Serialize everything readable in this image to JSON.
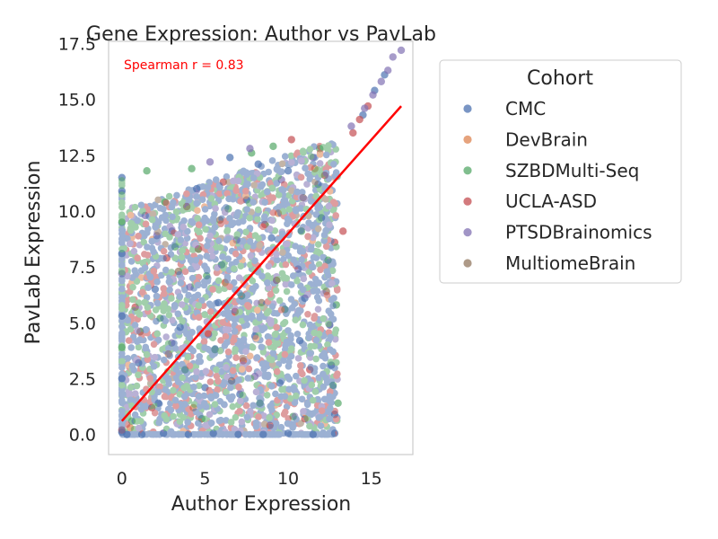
{
  "chart_data": {
    "type": "scatter",
    "title": "Gene Expression: Author vs PavLab",
    "xlabel": "Author Expression",
    "ylabel": "PavLab Expression",
    "xlim": [
      -0.8,
      17.5
    ],
    "ylim": [
      -0.9,
      17.6
    ],
    "xticks": [
      "0",
      "5",
      "10",
      "15"
    ],
    "xtick_values": [
      0,
      5,
      10,
      15
    ],
    "yticks": [
      "0.0",
      "2.5",
      "5.0",
      "7.5",
      "10.0",
      "12.5",
      "15.0",
      "17.5"
    ],
    "ytick_values": [
      0,
      2.5,
      5,
      7.5,
      10,
      12.5,
      15,
      17.5
    ],
    "grid": false,
    "annotation": "Spearman r = 0.83",
    "annotation_color": "#ff0000",
    "regression_line": {
      "x": [
        0,
        16.8
      ],
      "y": [
        0.6,
        14.7
      ],
      "color": "#ff0000"
    },
    "legend": {
      "title": "Cohort",
      "placement": "outside-right"
    },
    "series": [
      {
        "name": "CMC",
        "color": "#4c72b0",
        "points": [
          [
            0,
            0.1
          ],
          [
            0,
            2.5
          ],
          [
            0,
            5.3
          ],
          [
            0,
            8.1
          ],
          [
            0,
            10.9
          ],
          [
            0,
            11.5
          ],
          [
            0.3,
            0
          ],
          [
            1.2,
            0
          ],
          [
            2.5,
            0.05
          ],
          [
            4,
            0
          ],
          [
            5.5,
            0.05
          ],
          [
            7,
            0
          ],
          [
            8.5,
            0
          ],
          [
            10,
            0.05
          ],
          [
            11.5,
            0
          ],
          [
            12.8,
            0.05
          ],
          [
            1,
            3.2
          ],
          [
            2,
            6.5
          ],
          [
            3,
            9.1
          ],
          [
            4.5,
            11
          ],
          [
            5,
            2.1
          ],
          [
            6,
            7.6
          ],
          [
            7.5,
            10.5
          ],
          [
            8,
            4.4
          ],
          [
            9,
            8.8
          ],
          [
            10,
            11.8
          ],
          [
            11,
            6.1
          ],
          [
            12,
            9.7
          ],
          [
            12.6,
            3.1
          ],
          [
            12.8,
            0.9
          ],
          [
            6.5,
            12.4
          ],
          [
            8.2,
            12.1
          ],
          [
            3.5,
            4.8
          ],
          [
            9.5,
            2.3
          ],
          [
            11.8,
            11.2
          ],
          [
            14.5,
            14.3
          ],
          [
            15.2,
            15.4
          ],
          [
            15.8,
            16.1
          ],
          [
            2.2,
            1.4
          ],
          [
            5.8,
            5.9
          ],
          [
            7.1,
            1.8
          ],
          [
            10.7,
            4.2
          ]
        ]
      },
      {
        "name": "DevBrain",
        "color": "#dd8452",
        "points": [
          [
            0.5,
            0.3
          ],
          [
            2.8,
            3.6
          ],
          [
            6.2,
            6.8
          ],
          [
            9.4,
            9.9
          ],
          [
            11.6,
            11.9
          ],
          [
            4.3,
            1.2
          ]
        ]
      },
      {
        "name": "SZBDMulti-Seq",
        "color": "#55a868",
        "points": [
          [
            0,
            9.5
          ],
          [
            0,
            3.9
          ],
          [
            0.6,
            0.6
          ],
          [
            1.5,
            11.8
          ],
          [
            2.3,
            5.2
          ],
          [
            3.2,
            8.4
          ],
          [
            4.2,
            11.9
          ],
          [
            4.8,
            0.7
          ],
          [
            5.6,
            3.8
          ],
          [
            6.4,
            10.1
          ],
          [
            7.2,
            6.2
          ],
          [
            8.3,
            1.4
          ],
          [
            9.1,
            12.9
          ],
          [
            9.8,
            5.6
          ],
          [
            10.8,
            9.1
          ],
          [
            11.9,
            12.8
          ],
          [
            12.4,
            7.8
          ],
          [
            12.9,
            5.8
          ],
          [
            12.7,
            2.2
          ],
          [
            13,
            1.4
          ],
          [
            7.8,
            12.6
          ],
          [
            3.8,
            2.9
          ],
          [
            5.1,
            7.1
          ],
          [
            10.3,
            0.8
          ],
          [
            2.6,
            10.4
          ]
        ]
      },
      {
        "name": "UCLA-ASD",
        "color": "#c44e52",
        "points": [
          [
            0,
            0.2
          ],
          [
            0.8,
            5.7
          ],
          [
            1.8,
            1.2
          ],
          [
            2.7,
            7.9
          ],
          [
            3.9,
            10.2
          ],
          [
            5.2,
            4.5
          ],
          [
            6.1,
            11.3
          ],
          [
            7.3,
            3.3
          ],
          [
            8.6,
            9.4
          ],
          [
            9.3,
            6.9
          ],
          [
            10.2,
            13.2
          ],
          [
            11.3,
            2.9
          ],
          [
            12.2,
            11.6
          ],
          [
            12.8,
            8.6
          ],
          [
            13.3,
            9.1
          ],
          [
            13.9,
            13.5
          ],
          [
            14.3,
            14.1
          ],
          [
            14.8,
            14.7
          ],
          [
            11,
            0.7
          ],
          [
            8.9,
            0.4
          ],
          [
            4.6,
            8.3
          ],
          [
            6.8,
            5.5
          ]
        ]
      },
      {
        "name": "PTSDBrainomics",
        "color": "#8172b3",
        "points": [
          [
            0,
            7.2
          ],
          [
            1.4,
            9.8
          ],
          [
            3,
            4.1
          ],
          [
            4.1,
            6.6
          ],
          [
            5.3,
            12.2
          ],
          [
            6.9,
            8.7
          ],
          [
            8,
            2.6
          ],
          [
            9.6,
            11.4
          ],
          [
            10.6,
            7.4
          ],
          [
            11.5,
            12.4
          ],
          [
            12.5,
            4.9
          ],
          [
            13.8,
            13.8
          ],
          [
            14.6,
            14.6
          ],
          [
            15.1,
            15.2
          ],
          [
            15.6,
            15.8
          ],
          [
            16,
            16.3
          ],
          [
            16.3,
            16.9
          ],
          [
            16.8,
            17.2
          ],
          [
            7.7,
            12.8
          ],
          [
            2.1,
            8.9
          ]
        ]
      },
      {
        "name": "MultiomeBrain",
        "color": "#937860",
        "points": [
          [
            1.1,
            4.6
          ],
          [
            3.4,
            7.3
          ],
          [
            5.9,
            9.6
          ],
          [
            8.4,
            5.9
          ],
          [
            10.9,
            10.6
          ],
          [
            12.3,
            6.4
          ],
          [
            6.6,
            2.4
          ]
        ]
      }
    ]
  }
}
